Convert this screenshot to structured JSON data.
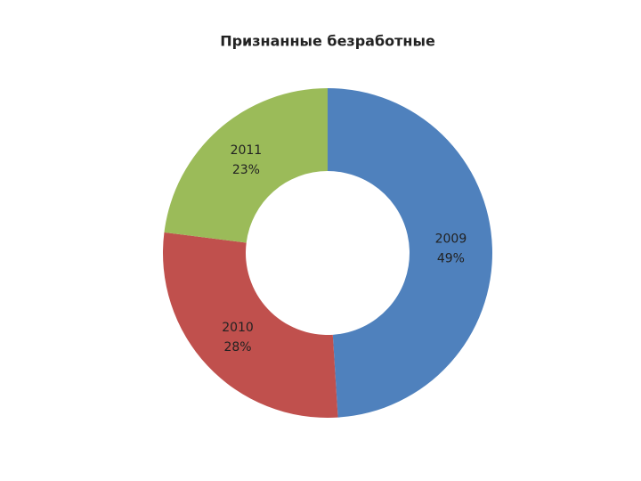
{
  "chart_data": {
    "type": "doughnut",
    "title": "Признанные безработные",
    "categories": [
      "2009",
      "2010",
      "2011"
    ],
    "values": [
      49,
      28,
      23
    ],
    "value_labels": [
      "49%",
      "28%",
      "23%"
    ],
    "colors": [
      "#4f81bd",
      "#c0504d",
      "#9bbb59"
    ]
  }
}
